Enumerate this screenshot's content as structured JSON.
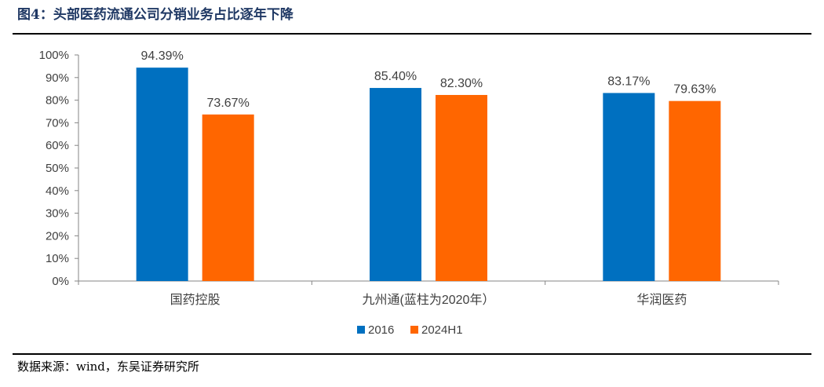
{
  "figure_title": "图4：头部医药流通公司分销业务占比逐年下降",
  "source": "数据来源：wind，东吴证券研究所",
  "chart_data": {
    "type": "bar",
    "categories": [
      "国药控股",
      "九州通(蓝柱为2020年）",
      "华润医药"
    ],
    "series": [
      {
        "name": "2016",
        "values": [
          94.39,
          85.4,
          83.17
        ],
        "labels": [
          "94.39%",
          "85.40%",
          "83.17%"
        ],
        "color": "#0070c0"
      },
      {
        "name": "2024H1",
        "values": [
          73.67,
          82.3,
          79.63
        ],
        "labels": [
          "73.67%",
          "82.30%",
          "79.63%"
        ],
        "color": "#ff6600"
      }
    ],
    "ylim": [
      0,
      100
    ],
    "yticks": [
      "0%",
      "10%",
      "20%",
      "30%",
      "40%",
      "50%",
      "60%",
      "70%",
      "80%",
      "90%",
      "100%"
    ],
    "legend": "bottom-center",
    "grid": false
  }
}
